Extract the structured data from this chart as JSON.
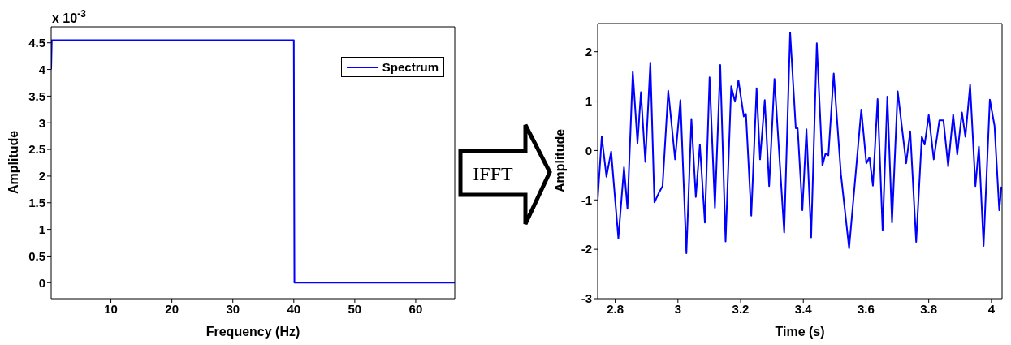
{
  "chart_data": [
    {
      "type": "line",
      "xlabel": "Frequency (Hz)",
      "ylabel": "Amplitude",
      "annotations": [
        "x 10$^{-3}$"
      ],
      "xlim": [
        0.2,
        66.4
      ],
      "ylim": [
        -0.3,
        4.8
      ],
      "xticks": [
        10,
        20,
        30,
        40,
        50,
        60
      ],
      "yticks": [
        0,
        0.5,
        1,
        1.5,
        2,
        2.5,
        3,
        3.5,
        4,
        4.5
      ],
      "legend": "top right",
      "grid": false,
      "series": [
        {
          "name": "Spectrum",
          "color": "#0000ff",
          "x": [
            0.2,
            0.3,
            40,
            40.1,
            66.4
          ],
          "values": [
            4,
            4.55,
            4.55,
            0,
            0
          ]
        }
      ]
    },
    {
      "type": "line",
      "xlabel": "Time (s)",
      "ylabel": "Amplitude",
      "annotations": [
        "IFFT"
      ],
      "xlim": [
        2.744,
        4.034
      ],
      "ylim": [
        -3,
        2.57
      ],
      "xticks": [
        2.8,
        3,
        3.2,
        3.4,
        3.6,
        3.8,
        4
      ],
      "yticks": [
        -3,
        -2,
        -1,
        0,
        1,
        2
      ],
      "grid": false,
      "series": [
        {
          "color": "#0000ff",
          "x": [
            2.744,
            2.757,
            2.772,
            2.787,
            2.81,
            2.828,
            2.839,
            2.856,
            2.871,
            2.882,
            2.896,
            2.912,
            2.925,
            2.939,
            2.951,
            2.969,
            2.991,
            3.008,
            3.027,
            3.043,
            3.057,
            3.07,
            3.086,
            3.101,
            3.118,
            3.135,
            3.152,
            3.17,
            3.182,
            3.193,
            3.21,
            3.217,
            3.234,
            3.251,
            3.262,
            3.277,
            3.291,
            3.308,
            3.339,
            3.358,
            3.376,
            3.382,
            3.397,
            3.41,
            3.425,
            3.443,
            3.461,
            3.471,
            3.48,
            3.497,
            3.52,
            3.546,
            3.585,
            3.601,
            3.611,
            3.622,
            3.637,
            3.653,
            3.668,
            3.683,
            3.701,
            3.728,
            3.741,
            3.76,
            3.778,
            3.787,
            3.8,
            3.816,
            3.834,
            3.847,
            3.862,
            3.878,
            3.891,
            3.906,
            3.917,
            3.932,
            3.949,
            3.96,
            3.975,
            3.995,
            4.01,
            4.025,
            4.032
          ],
          "values": [
            -1.0,
            0.28,
            -0.53,
            -0.02,
            -1.78,
            -0.34,
            -1.18,
            1.59,
            0.15,
            1.18,
            -0.23,
            1.78,
            -1.05,
            -0.86,
            -0.72,
            1.21,
            -0.18,
            1.02,
            -2.08,
            0.64,
            -0.94,
            0.12,
            -1.46,
            1.48,
            -1.16,
            1.73,
            -1.84,
            1.3,
            0.99,
            1.42,
            0.69,
            0.74,
            -1.32,
            1.26,
            -0.18,
            1.02,
            -0.72,
            1.45,
            -1.66,
            2.39,
            0.45,
            0.45,
            -1.21,
            0.43,
            -1.76,
            2.17,
            -0.3,
            -0.06,
            -0.1,
            1.56,
            -0.48,
            -1.98,
            0.83,
            -0.26,
            -0.14,
            -0.71,
            1.04,
            -1.62,
            1.09,
            -1.46,
            1.2,
            -0.26,
            0.39,
            -1.85,
            0.28,
            0.12,
            0.72,
            -0.18,
            0.61,
            0.61,
            -0.32,
            0.73,
            -0.08,
            0.77,
            0.28,
            1.33,
            -0.72,
            0.08,
            -1.93,
            1.03,
            0.5,
            -1.21,
            -0.73
          ]
        }
      ]
    }
  ]
}
